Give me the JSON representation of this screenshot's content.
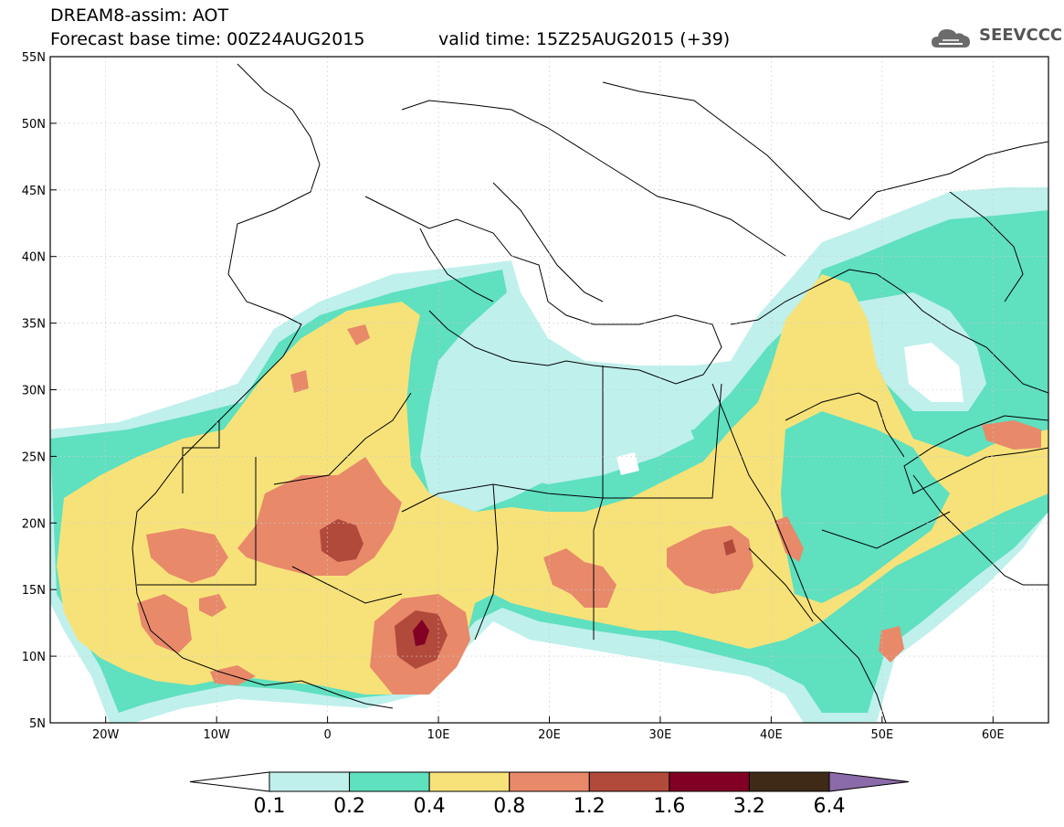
{
  "header": {
    "line1": "DREAM8-assim: AOT",
    "line2": "Forecast base time: 00Z24AUG2015",
    "valid": "valid time: 15Z25AUG2015 (+39)"
  },
  "logo": {
    "text": "SEEVCCC",
    "icon": "cloud-logo-icon"
  },
  "map": {
    "lon_range": [
      -25,
      65
    ],
    "lat_range": [
      5,
      55
    ],
    "lon_ticks": [
      {
        "value": -20,
        "label": "20W"
      },
      {
        "value": -10,
        "label": "10W"
      },
      {
        "value": 0,
        "label": "0"
      },
      {
        "value": 10,
        "label": "10E"
      },
      {
        "value": 20,
        "label": "20E"
      },
      {
        "value": 30,
        "label": "30E"
      },
      {
        "value": 40,
        "label": "40E"
      },
      {
        "value": 50,
        "label": "50E"
      },
      {
        "value": 60,
        "label": "60E"
      }
    ],
    "lat_ticks": [
      {
        "value": 55,
        "label": "55N"
      },
      {
        "value": 50,
        "label": "50N"
      },
      {
        "value": 45,
        "label": "45N"
      },
      {
        "value": 40,
        "label": "40N"
      },
      {
        "value": 35,
        "label": "35N"
      },
      {
        "value": 30,
        "label": "30N"
      },
      {
        "value": 25,
        "label": "25N"
      },
      {
        "value": 20,
        "label": "20N"
      },
      {
        "value": 15,
        "label": "15N"
      },
      {
        "value": 10,
        "label": "10N"
      },
      {
        "value": 5,
        "label": "5N"
      }
    ]
  },
  "colorbar": {
    "labels": [
      "0.1",
      "0.2",
      "0.4",
      "0.8",
      "1.2",
      "1.6",
      "3.2",
      "6.4"
    ],
    "colors": [
      "#ffffff",
      "#bff0ec",
      "#5fe0bf",
      "#f7e27a",
      "#e8896a",
      "#b24a3c",
      "#820024",
      "#3f2a17",
      "#8a6aa8"
    ]
  }
}
